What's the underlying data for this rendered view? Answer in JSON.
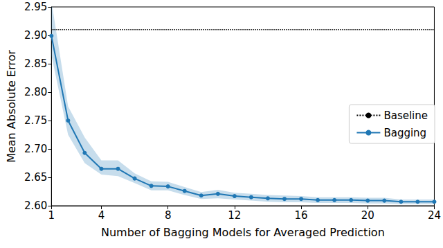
{
  "chart_data": {
    "type": "line",
    "x_label": "Number of Bagging Models for Averaged Prediction",
    "y_label": "Mean Absolute Error",
    "x": [
      1,
      2,
      3,
      4,
      5,
      6,
      7,
      8,
      9,
      10,
      11,
      12,
      13,
      14,
      15,
      16,
      17,
      18,
      19,
      20,
      21,
      22,
      23,
      24
    ],
    "series": [
      {
        "name": "Baseline",
        "color": "#000000",
        "line_style": "dotted",
        "marker": "none",
        "values": [
          2.91,
          2.91,
          2.91,
          2.91,
          2.91,
          2.91,
          2.91,
          2.91,
          2.91,
          2.91,
          2.91,
          2.91,
          2.91,
          2.91,
          2.91,
          2.91,
          2.91,
          2.91,
          2.91,
          2.91,
          2.91,
          2.91,
          2.91,
          2.91
        ]
      },
      {
        "name": "Bagging",
        "color": "#1f77b4",
        "line_style": "solid",
        "marker": "circle",
        "values": [
          2.899,
          2.75,
          2.693,
          2.665,
          2.665,
          2.648,
          2.635,
          2.634,
          2.626,
          2.618,
          2.621,
          2.617,
          2.615,
          2.613,
          2.612,
          2.612,
          2.61,
          2.61,
          2.61,
          2.609,
          2.609,
          2.607,
          2.607,
          2.607
        ],
        "lower": [
          2.865,
          2.725,
          2.675,
          2.655,
          2.652,
          2.64,
          2.627,
          2.627,
          2.619,
          2.612,
          2.613,
          2.611,
          2.609,
          2.607,
          2.606,
          2.606,
          2.605,
          2.605,
          2.605,
          2.604,
          2.604,
          2.603,
          2.603,
          2.603
        ],
        "upper": [
          2.96,
          2.775,
          2.72,
          2.68,
          2.68,
          2.657,
          2.643,
          2.642,
          2.633,
          2.624,
          2.628,
          2.623,
          2.621,
          2.619,
          2.618,
          2.617,
          2.615,
          2.615,
          2.615,
          2.614,
          2.614,
          2.611,
          2.611,
          2.611
        ]
      }
    ],
    "xlim": [
      1,
      24
    ],
    "xticks": [
      1,
      4,
      8,
      12,
      16,
      20,
      24
    ],
    "ylim": [
      2.6,
      2.95
    ],
    "yticks": [
      {
        "value": 2.6,
        "label": "2.60"
      },
      {
        "value": 2.65,
        "label": "2.65"
      },
      {
        "value": 2.7,
        "label": "2.70"
      },
      {
        "value": 2.75,
        "label": "2.75"
      },
      {
        "value": 2.8,
        "label": "2.80"
      },
      {
        "value": 2.85,
        "label": "2.85"
      },
      {
        "value": 2.9,
        "label": "2.90"
      },
      {
        "value": 2.95,
        "label": "2.95"
      }
    ],
    "grid": false,
    "legend": "right"
  }
}
